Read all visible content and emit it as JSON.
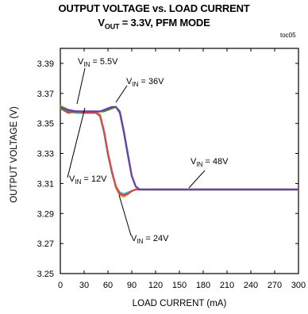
{
  "chart_data": {
    "type": "line",
    "title_main": "OUTPUT VOLTAGE vs. LOAD CURRENT",
    "title_sub_prefix": "V",
    "title_sub_subscript": "OUT",
    "title_sub_suffix": " = 3.3V, PFM MODE",
    "corner_tag": "toc05",
    "xlabel": "LOAD CURRENT (mA)",
    "ylabel": "OUTPUT VOLTAGE (V)",
    "xlim": [
      0,
      300
    ],
    "ylim": [
      3.25,
      3.4
    ],
    "x_ticks": [
      0,
      30,
      60,
      90,
      120,
      150,
      180,
      210,
      240,
      270,
      300
    ],
    "y_ticks": [
      3.25,
      3.27,
      3.29,
      3.31,
      3.33,
      3.35,
      3.37,
      3.39
    ],
    "y_tick_labels": [
      "3.25",
      "3.27",
      "3.29",
      "3.31",
      "3.33",
      "3.35",
      "3.37",
      "3.39"
    ],
    "grid": false,
    "series": [
      {
        "name": "VIN = 5.5V",
        "label_prefix": "V",
        "label_sub": "IN",
        "label_suffix": " = 5.5V",
        "color": "#e8a93c",
        "x": [
          0,
          10,
          20,
          30,
          40,
          45,
          50,
          55,
          60,
          65,
          70,
          75,
          80,
          85,
          90,
          95,
          100,
          110,
          120,
          150,
          200,
          250,
          300
        ],
        "y": [
          3.362,
          3.359,
          3.358,
          3.358,
          3.358,
          3.358,
          3.356,
          3.345,
          3.33,
          3.318,
          3.307,
          3.302,
          3.301,
          3.303,
          3.305,
          3.306,
          3.306,
          3.306,
          3.306,
          3.306,
          3.306,
          3.306,
          3.306
        ]
      },
      {
        "name": "VIN = 12V",
        "label_prefix": "V",
        "label_sub": "IN",
        "label_suffix": " = 12V",
        "color": "#2fb6c2",
        "x": [
          0,
          10,
          20,
          30,
          40,
          45,
          50,
          55,
          60,
          65,
          70,
          75,
          80,
          85,
          90,
          95,
          100,
          110,
          120,
          150,
          200,
          250,
          300
        ],
        "y": [
          3.361,
          3.358,
          3.357,
          3.357,
          3.357,
          3.357,
          3.355,
          3.344,
          3.329,
          3.317,
          3.308,
          3.304,
          3.303,
          3.304,
          3.305,
          3.306,
          3.306,
          3.306,
          3.306,
          3.306,
          3.306,
          3.306,
          3.306
        ]
      },
      {
        "name": "VIN = 24V",
        "label_prefix": "V",
        "label_sub": "IN",
        "label_suffix": " = 24V",
        "color": "#d9434a",
        "x": [
          0,
          10,
          20,
          30,
          40,
          45,
          50,
          55,
          60,
          65,
          70,
          75,
          80,
          85,
          90,
          95,
          100,
          110,
          120,
          150,
          200,
          250,
          300
        ],
        "y": [
          3.36,
          3.357,
          3.358,
          3.357,
          3.357,
          3.357,
          3.355,
          3.345,
          3.33,
          3.318,
          3.308,
          3.303,
          3.302,
          3.303,
          3.305,
          3.306,
          3.306,
          3.306,
          3.306,
          3.306,
          3.306,
          3.306,
          3.306
        ]
      },
      {
        "name": "VIN = 48V",
        "label_prefix": "V",
        "label_sub": "IN",
        "label_suffix": " = 48V",
        "color": "#4d8a3c",
        "x": [
          0,
          10,
          20,
          30,
          40,
          50,
          55,
          60,
          65,
          70,
          75,
          80,
          85,
          90,
          95,
          100,
          110,
          120,
          150,
          200,
          250,
          300
        ],
        "y": [
          3.36,
          3.358,
          3.358,
          3.358,
          3.358,
          3.358,
          3.358,
          3.359,
          3.36,
          3.361,
          3.358,
          3.345,
          3.33,
          3.315,
          3.308,
          3.306,
          3.306,
          3.306,
          3.306,
          3.306,
          3.306,
          3.306
        ]
      },
      {
        "name": "VIN = 36V",
        "label_prefix": "V",
        "label_sub": "IN",
        "label_suffix": " = 36V",
        "color": "#6a3fb0",
        "x": [
          0,
          10,
          20,
          30,
          40,
          50,
          55,
          60,
          65,
          70,
          75,
          80,
          85,
          90,
          95,
          100,
          110,
          120,
          150,
          200,
          250,
          300
        ],
        "y": [
          3.361,
          3.359,
          3.358,
          3.358,
          3.358,
          3.358,
          3.359,
          3.36,
          3.361,
          3.361,
          3.357,
          3.344,
          3.329,
          3.315,
          3.308,
          3.306,
          3.306,
          3.306,
          3.306,
          3.306,
          3.306,
          3.306
        ]
      }
    ]
  }
}
